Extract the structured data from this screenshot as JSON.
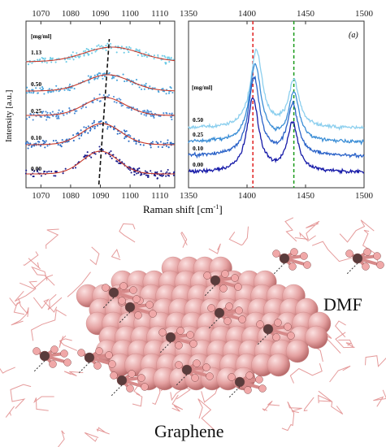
{
  "figure": {
    "shared_xlabel": "Raman shift [cm",
    "shared_xlabel_sup": "-1",
    "shared_xlabel_end": "]",
    "ylabel": "Intensity [a.u.]",
    "molecule_labels": {
      "dmf": "DMF",
      "graphene": "Graphene"
    }
  },
  "colors": {
    "left_fit": "#c83a2c",
    "left_dots": [
      "#1b1d8c",
      "#2a6cc4",
      "#4a8ad4",
      "#4aa4dc",
      "#6ecbe6"
    ],
    "right_lines": [
      "#161aa8",
      "#2a62c8",
      "#3b8ed6",
      "#8ccfee"
    ],
    "graphene_atom": "#e4a0a0",
    "dmf_line": "#e08a8a",
    "dark_atom": "#5a3c3c"
  },
  "chart_data": [
    {
      "type": "scatter",
      "panel": "left",
      "xlabel": "",
      "ylabel": "Intensity [a.u.]",
      "xlim": [
        1065,
        1115
      ],
      "x_ticks": [
        1070,
        1080,
        1090,
        1100,
        1110
      ],
      "legend_title": "[mg/ml]",
      "series": [
        {
          "name": "0.00",
          "peak_center": 1090.0,
          "fwhm": 14,
          "amplitude": 1.0
        },
        {
          "name": "0.10",
          "peak_center": 1090.5,
          "fwhm": 15,
          "amplitude": 1.0
        },
        {
          "name": "0.25",
          "peak_center": 1091.5,
          "fwhm": 16,
          "amplitude": 1.0
        },
        {
          "name": "0.50",
          "peak_center": 1092.5,
          "fwhm": 18,
          "amplitude": 1.0
        },
        {
          "name": "1.13",
          "peak_center": 1094.0,
          "fwhm": 22,
          "amplitude": 1.0
        }
      ],
      "guide_line": {
        "x_start": 1089.5,
        "x_end": 1093.0
      }
    },
    {
      "type": "line",
      "panel": "right",
      "panel_label": "(a)",
      "xlabel": "",
      "xlim": [
        1350,
        1500
      ],
      "x_ticks": [
        1350,
        1400,
        1450,
        1500
      ],
      "legend_title": "[mg/ml]",
      "series": [
        {
          "name": "0.00",
          "peak1_center": 1405,
          "peak2_center": 1439
        },
        {
          "name": "0.10",
          "peak1_center": 1406,
          "peak2_center": 1439
        },
        {
          "name": "0.25",
          "peak1_center": 1407,
          "peak2_center": 1440
        },
        {
          "name": "0.50",
          "peak1_center": 1408,
          "peak2_center": 1440
        }
      ],
      "reference_lines": [
        {
          "x": 1405,
          "color": "red"
        },
        {
          "x": 1440,
          "color": "green"
        }
      ]
    }
  ]
}
